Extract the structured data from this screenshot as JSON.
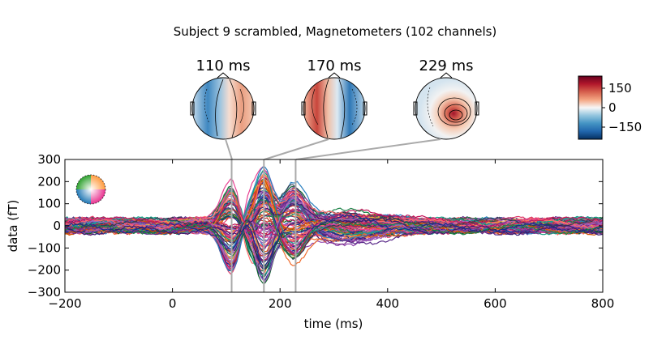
{
  "chart_data": {
    "type": "line",
    "title": "Subject 9 scrambled, Magnetometers (102 channels)",
    "xlabel": "time (ms)",
    "ylabel": "data (fT)",
    "xlim": [
      -200,
      800
    ],
    "ylim": [
      -300,
      300
    ],
    "xticks": [
      "−200",
      "0",
      "200",
      "400",
      "600",
      "800"
    ],
    "yticks": [
      "300",
      "200",
      "100",
      "0",
      "−100",
      "−200",
      "−300"
    ],
    "grid": false,
    "n_channels": 102,
    "topomap_times": [
      {
        "time": 110,
        "label": "110 ms"
      },
      {
        "time": 170,
        "label": "170 ms"
      },
      {
        "time": 229,
        "label": "229 ms"
      }
    ],
    "colorbar": {
      "cmap": "RdBu_r",
      "range": [
        -200,
        200
      ],
      "ticks": [
        "150",
        "0",
        "−150"
      ]
    },
    "envelope_ms": {
      "x": [
        -200,
        -100,
        0,
        50,
        70,
        90,
        110,
        130,
        150,
        170,
        190,
        210,
        229,
        260,
        300,
        350,
        400,
        500,
        600,
        700,
        800
      ],
      "max": [
        45,
        45,
        40,
        45,
        80,
        200,
        185,
        120,
        170,
        260,
        230,
        205,
        215,
        130,
        90,
        75,
        70,
        60,
        55,
        60,
        60
      ],
      "min": [
        -40,
        -45,
        -40,
        -45,
        -90,
        -210,
        -240,
        -140,
        -200,
        -295,
        -200,
        -160,
        -140,
        -120,
        -105,
        -150,
        -90,
        -70,
        -70,
        -65,
        -70
      ]
    }
  }
}
